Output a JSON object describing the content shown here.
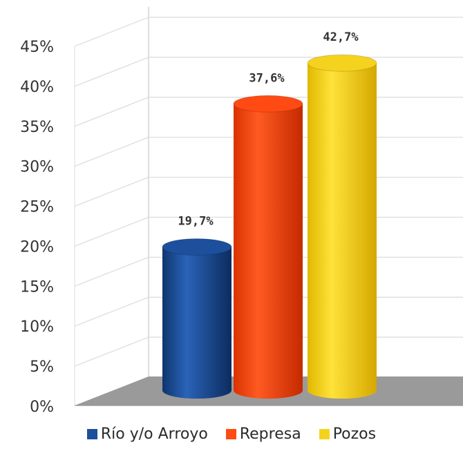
{
  "chart_data": {
    "type": "bar",
    "categories": [
      "Río y/o Arroyo",
      "Represa",
      "Pozos"
    ],
    "values": [
      19.7,
      37.6,
      42.7
    ],
    "data_labels": [
      "19,7%",
      "37,6%",
      "42,7%"
    ],
    "yticks": [
      "0%",
      "5%",
      "10%",
      "15%",
      "20%",
      "25%",
      "30%",
      "35%",
      "40%",
      "45%"
    ],
    "ylim": [
      0,
      45
    ],
    "colors": [
      "#1c4f9c",
      "#ff4a14",
      "#f5d21e"
    ],
    "grid": true,
    "legend": "bottom",
    "style": "3d-cylinder"
  }
}
